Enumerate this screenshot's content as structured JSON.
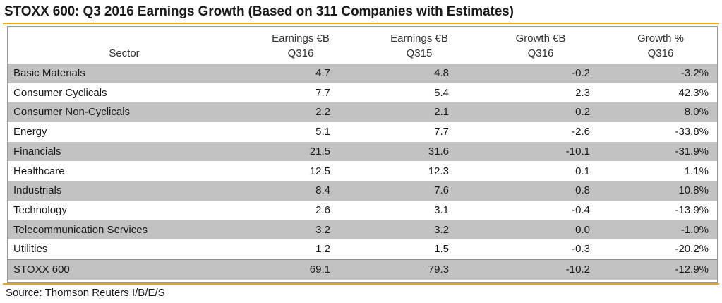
{
  "title": "STOXX 600: Q3 2016 Earnings Growth (Based on 311 Companies with Estimates)",
  "accent_color": "#f0a400",
  "shade_color": "#c2c2c2",
  "table": {
    "headers": [
      {
        "line1": "",
        "line2": "Sector"
      },
      {
        "line1": "Earnings €B",
        "line2": "Q316"
      },
      {
        "line1": "Earnings €B",
        "line2": "Q315"
      },
      {
        "line1": "Growth €B",
        "line2": "Q316"
      },
      {
        "line1": "Growth %",
        "line2": "Q316"
      }
    ],
    "rows": [
      [
        "Basic Materials",
        "4.7",
        "4.8",
        "-0.2",
        "-3.2%"
      ],
      [
        "Consumer Cyclicals",
        "7.7",
        "5.4",
        "2.3",
        "42.3%"
      ],
      [
        "Consumer Non-Cyclicals",
        "2.2",
        "2.1",
        "0.2",
        "8.0%"
      ],
      [
        "Energy",
        "5.1",
        "7.7",
        "-2.6",
        "-33.8%"
      ],
      [
        "Financials",
        "21.5",
        "31.6",
        "-10.1",
        "-31.9%"
      ],
      [
        "Healthcare",
        "12.5",
        "12.3",
        "0.1",
        "1.1%"
      ],
      [
        "Industrials",
        "8.4",
        "7.6",
        "0.8",
        "10.8%"
      ],
      [
        "Technology",
        "2.6",
        "3.1",
        "-0.4",
        "-13.9%"
      ],
      [
        "Telecommunication Services",
        "3.2",
        "3.2",
        "0.0",
        "-1.0%"
      ],
      [
        "Utilities",
        "1.2",
        "1.5",
        "-0.3",
        "-20.2%"
      ],
      [
        "STOXX 600",
        "69.1",
        "79.3",
        "-10.2",
        "-12.9%"
      ]
    ]
  },
  "source": "Source: Thomson Reuters I/B/E/S"
}
